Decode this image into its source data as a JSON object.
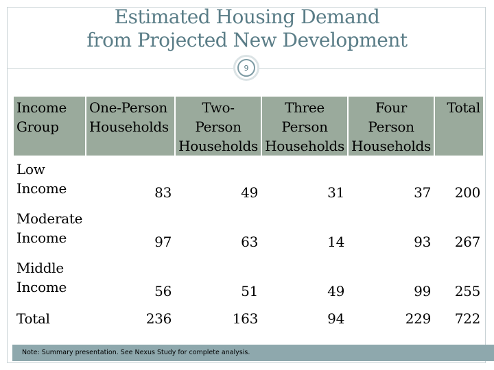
{
  "slide": {
    "title_line1": "Estimated Housing Demand",
    "title_line2": "from Projected New Development",
    "number": "9"
  },
  "table": {
    "headers": [
      [
        "Income",
        "Group",
        ""
      ],
      [
        "One-Person",
        "Households",
        ""
      ],
      [
        "Two-",
        "Person",
        "Households"
      ],
      [
        "Three",
        "Person",
        "Households"
      ],
      [
        "Four",
        "Person",
        "Households"
      ],
      [
        "Total",
        "",
        ""
      ]
    ],
    "rows": [
      {
        "label_line1": "Low",
        "label_line2": "Income",
        "values": [
          "83",
          "49",
          "31",
          "37",
          "200"
        ]
      },
      {
        "label_line1": "Moderate",
        "label_line2": "Income",
        "values": [
          "97",
          "63",
          "14",
          "93",
          "267"
        ]
      },
      {
        "label_line1": "Middle",
        "label_line2": "Income",
        "values": [
          "56",
          "51",
          "49",
          "99",
          "255"
        ]
      },
      {
        "label_line1": "Total",
        "label_line2": "",
        "values": [
          "236",
          "163",
          "94",
          "229",
          "722"
        ]
      }
    ]
  },
  "footer": {
    "note": "Note: Summary presentation. See Nexus Study for complete analysis."
  },
  "colors": {
    "header_bg": "#9aaa9c",
    "title_color": "#5a7d87",
    "note_bar": "#8ea8ad"
  }
}
